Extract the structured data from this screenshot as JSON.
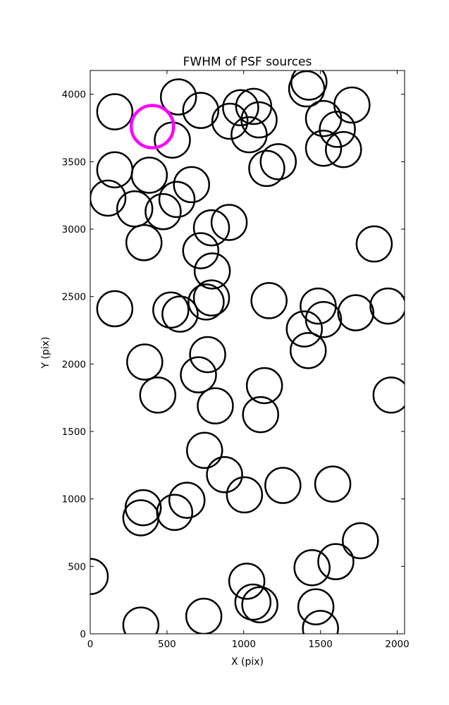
{
  "chart_data": {
    "type": "scatter",
    "title": "FWHM of PSF sources",
    "xlabel": "X (pix)",
    "ylabel": "Y (pix)",
    "xlim": [
      0,
      2048
    ],
    "ylim": [
      0,
      4176
    ],
    "xticks": [
      0,
      500,
      1000,
      1500,
      2000
    ],
    "yticks": [
      0,
      500,
      1000,
      1500,
      2000,
      2500,
      3000,
      3500,
      4000
    ],
    "marker": "open-circle",
    "series": [
      {
        "color": "#000000",
        "points": [
          {
            "x": 575,
            "y": 3980
          },
          {
            "x": 160,
            "y": 3870
          },
          {
            "x": 720,
            "y": 3880
          },
          {
            "x": 980,
            "y": 3900
          },
          {
            "x": 1065,
            "y": 3910
          },
          {
            "x": 1100,
            "y": 3810
          },
          {
            "x": 910,
            "y": 3800
          },
          {
            "x": 1035,
            "y": 3700
          },
          {
            "x": 1410,
            "y": 4040
          },
          {
            "x": 1425,
            "y": 4090
          },
          {
            "x": 1705,
            "y": 3920
          },
          {
            "x": 1520,
            "y": 3820
          },
          {
            "x": 1610,
            "y": 3740
          },
          {
            "x": 1520,
            "y": 3600
          },
          {
            "x": 1650,
            "y": 3590
          },
          {
            "x": 535,
            "y": 3660
          },
          {
            "x": 160,
            "y": 3440
          },
          {
            "x": 385,
            "y": 3400
          },
          {
            "x": 1150,
            "y": 3450
          },
          {
            "x": 1225,
            "y": 3500
          },
          {
            "x": 660,
            "y": 3330
          },
          {
            "x": 565,
            "y": 3220
          },
          {
            "x": 115,
            "y": 3230
          },
          {
            "x": 290,
            "y": 3150
          },
          {
            "x": 475,
            "y": 3130
          },
          {
            "x": 790,
            "y": 3010
          },
          {
            "x": 905,
            "y": 3050
          },
          {
            "x": 350,
            "y": 2900
          },
          {
            "x": 720,
            "y": 2840
          },
          {
            "x": 795,
            "y": 2690
          },
          {
            "x": 1850,
            "y": 2890
          },
          {
            "x": 160,
            "y": 2410
          },
          {
            "x": 525,
            "y": 2400
          },
          {
            "x": 585,
            "y": 2370
          },
          {
            "x": 755,
            "y": 2460
          },
          {
            "x": 790,
            "y": 2490
          },
          {
            "x": 1165,
            "y": 2470
          },
          {
            "x": 1485,
            "y": 2430
          },
          {
            "x": 1520,
            "y": 2330
          },
          {
            "x": 1395,
            "y": 2260
          },
          {
            "x": 1730,
            "y": 2380
          },
          {
            "x": 1940,
            "y": 2430
          },
          {
            "x": 355,
            "y": 2015
          },
          {
            "x": 765,
            "y": 2070
          },
          {
            "x": 705,
            "y": 1920
          },
          {
            "x": 1420,
            "y": 2100
          },
          {
            "x": 440,
            "y": 1770
          },
          {
            "x": 815,
            "y": 1690
          },
          {
            "x": 1135,
            "y": 1840
          },
          {
            "x": 1110,
            "y": 1625
          },
          {
            "x": 1960,
            "y": 1770
          },
          {
            "x": 745,
            "y": 1360
          },
          {
            "x": 875,
            "y": 1180
          },
          {
            "x": 1005,
            "y": 1030
          },
          {
            "x": 1255,
            "y": 1100
          },
          {
            "x": 1580,
            "y": 1110
          },
          {
            "x": 630,
            "y": 990
          },
          {
            "x": 345,
            "y": 935
          },
          {
            "x": 330,
            "y": 860
          },
          {
            "x": 550,
            "y": 900
          },
          {
            "x": 1760,
            "y": 690
          },
          {
            "x": 1600,
            "y": 535
          },
          {
            "x": 1445,
            "y": 490
          },
          {
            "x": 0,
            "y": 425
          },
          {
            "x": 1020,
            "y": 390
          },
          {
            "x": 1060,
            "y": 235
          },
          {
            "x": 1105,
            "y": 215
          },
          {
            "x": 1470,
            "y": 200
          },
          {
            "x": 1500,
            "y": 40
          },
          {
            "x": 740,
            "y": 130
          },
          {
            "x": 330,
            "y": 65
          }
        ]
      },
      {
        "color": "#ff00ff",
        "points": [
          {
            "x": 405,
            "y": 3760
          }
        ]
      }
    ]
  }
}
